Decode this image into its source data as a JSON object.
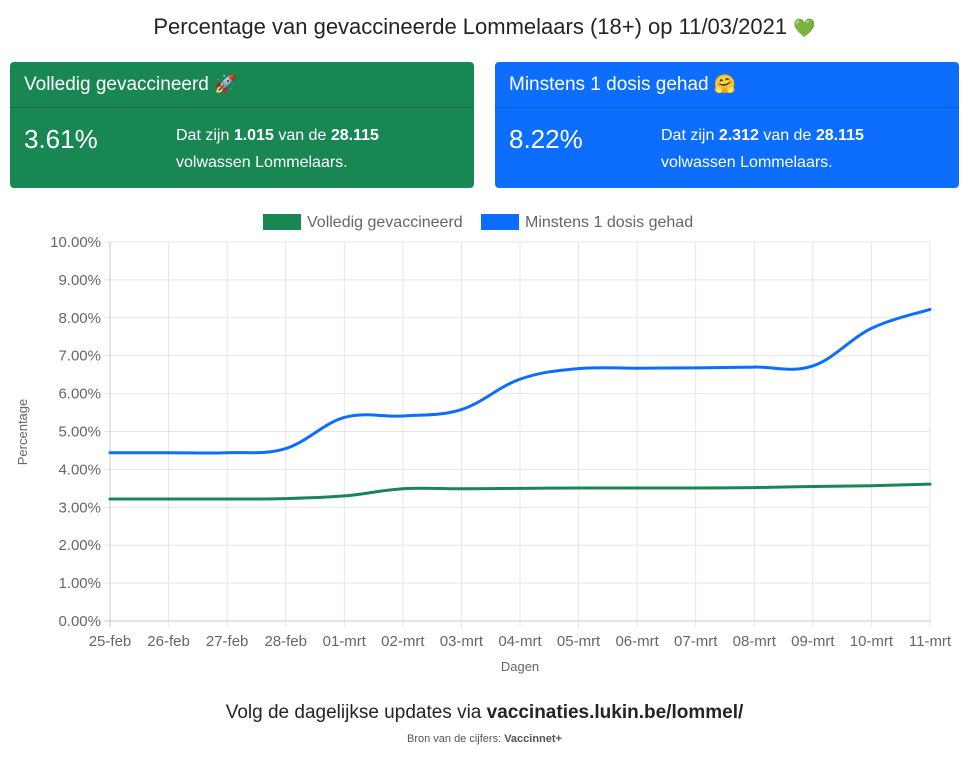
{
  "header": {
    "title": "Percentage van gevaccineerde Lommelaars (18+) op 11/03/2021",
    "title_emoji": "💚"
  },
  "cards": {
    "full": {
      "title": "Volledig gevaccineerd",
      "emoji": "🚀",
      "percentage": "3.61%",
      "text_prefix": "Dat zijn",
      "count": "1.015",
      "text_mid": "van de",
      "total": "28.115",
      "text_suffix": "volwassen Lommelaars.",
      "color": "#198754"
    },
    "partial": {
      "title": "Minstens 1 dosis gehad",
      "emoji": "🤗",
      "percentage": "8.22%",
      "text_prefix": "Dat zijn",
      "count": "2.312",
      "text_mid": "van de",
      "total": "28.115",
      "text_suffix": "volwassen Lommelaars.",
      "color": "#0d6efd"
    }
  },
  "chart_data": {
    "type": "line",
    "title": "",
    "xlabel": "Dagen",
    "ylabel": "Percentage",
    "ylim": [
      0,
      10
    ],
    "y_ticks": [
      "0.00%",
      "1.00%",
      "2.00%",
      "3.00%",
      "4.00%",
      "5.00%",
      "6.00%",
      "7.00%",
      "8.00%",
      "9.00%",
      "10.00%"
    ],
    "grid": true,
    "legend_position": "top",
    "categories": [
      "25-feb",
      "26-feb",
      "27-feb",
      "28-feb",
      "01-mrt",
      "02-mrt",
      "03-mrt",
      "04-mrt",
      "05-mrt",
      "06-mrt",
      "07-mrt",
      "08-mrt",
      "09-mrt",
      "10-mrt",
      "11-mrt"
    ],
    "series": [
      {
        "name": "Volledig gevaccineerd",
        "color": "#198754",
        "values": [
          3.22,
          3.22,
          3.22,
          3.23,
          3.3,
          3.49,
          3.49,
          3.5,
          3.51,
          3.51,
          3.51,
          3.52,
          3.55,
          3.57,
          3.61
        ]
      },
      {
        "name": "Minstens 1 dosis gehad",
        "color": "#0d6efd",
        "values": [
          4.44,
          4.44,
          4.44,
          4.55,
          5.37,
          5.41,
          5.58,
          6.38,
          6.66,
          6.67,
          6.68,
          6.7,
          6.73,
          7.72,
          8.22
        ]
      }
    ]
  },
  "footer": {
    "prefix": "Volg de dagelijkse updates via",
    "link": "vaccinaties.lukin.be/lommel/",
    "source_prefix": "Bron van de cijfers:",
    "source": "Vaccinnet+"
  }
}
